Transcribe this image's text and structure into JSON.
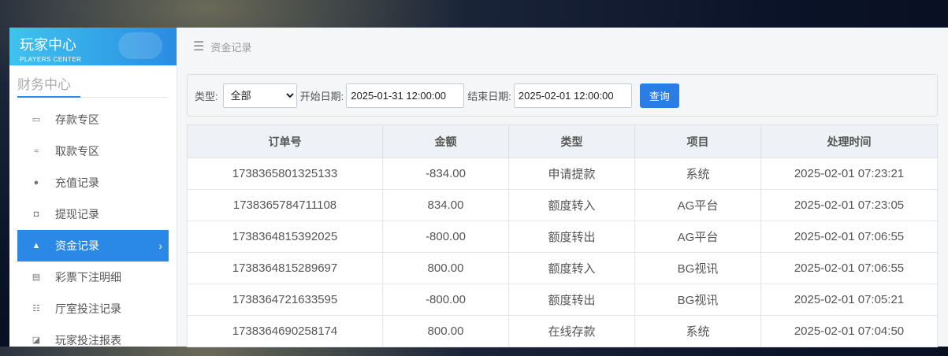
{
  "sidebar": {
    "title": "玩家中心",
    "subtitle": "PLAYERS CENTER",
    "section": "财务中心",
    "items": [
      {
        "label": "存款专区",
        "icon": "card-icon"
      },
      {
        "label": "取款专区",
        "icon": "hand-cash-icon"
      },
      {
        "label": "充值记录",
        "icon": "money-bag-icon"
      },
      {
        "label": "提现记录",
        "icon": "wallet-icon"
      },
      {
        "label": "资金记录",
        "icon": "house-money-icon",
        "active": true
      },
      {
        "label": "彩票下注明细",
        "icon": "list-icon"
      },
      {
        "label": "厅室投注记录",
        "icon": "bullet-list-icon"
      },
      {
        "label": "玩家投注报表",
        "icon": "chart-icon"
      }
    ]
  },
  "breadcrumb": "资金记录",
  "filter": {
    "type_label": "类型:",
    "type_value": "全部",
    "start_label": "开始日期:",
    "start_value": "2025-01-31 12:00:00",
    "end_label": "结束日期:",
    "end_value": "2025-02-01 12:00:00",
    "query": "查询"
  },
  "table": {
    "headers": [
      "订单号",
      "金额",
      "类型",
      "项目",
      "处理时间"
    ],
    "rows": [
      [
        "1738365801325133",
        "-834.00",
        "申请提款",
        "系统",
        "2025-02-01 07:23:21"
      ],
      [
        "1738365784711108",
        "834.00",
        "额度转入",
        "AG平台",
        "2025-02-01 07:23:05"
      ],
      [
        "1738364815392025",
        "-800.00",
        "额度转出",
        "AG平台",
        "2025-02-01 07:06:55"
      ],
      [
        "1738364815289697",
        "800.00",
        "额度转入",
        "BG视讯",
        "2025-02-01 07:06:55"
      ],
      [
        "1738364721633595",
        "-800.00",
        "额度转出",
        "BG视讯",
        "2025-02-01 07:05:21"
      ],
      [
        "1738364690258174",
        "800.00",
        "在线存款",
        "系统",
        "2025-02-01 07:04:50"
      ]
    ]
  },
  "colors": {
    "accent": "#2a88e6"
  }
}
